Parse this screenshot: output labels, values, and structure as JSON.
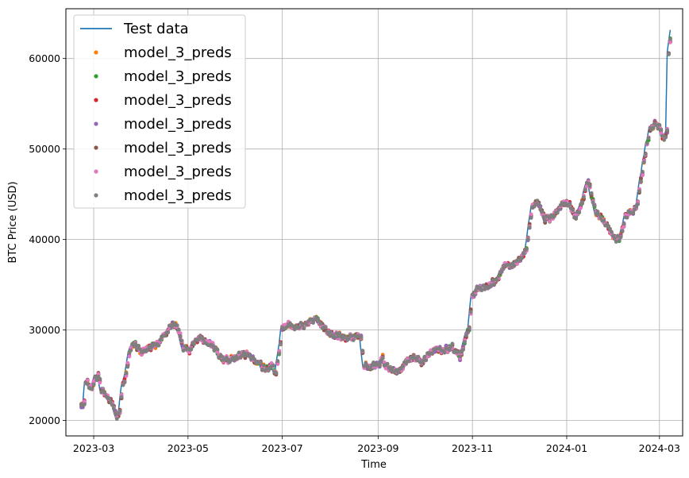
{
  "chart_data": {
    "type": "line",
    "xlabel": "Time",
    "ylabel": "BTC Price (USD)",
    "xlim": [
      "2023-02-11",
      "2024-03-16"
    ],
    "ylim": [
      18300,
      65500
    ],
    "grid": true,
    "legend_position": "top-left",
    "x_ticks": [
      {
        "date": "2023-03-01",
        "label": "2023-03"
      },
      {
        "date": "2023-05-01",
        "label": "2023-05"
      },
      {
        "date": "2023-07-01",
        "label": "2023-07"
      },
      {
        "date": "2023-09-01",
        "label": "2023-09"
      },
      {
        "date": "2023-11-01",
        "label": "2023-11"
      },
      {
        "date": "2024-01-01",
        "label": "2024-01"
      },
      {
        "date": "2024-03-01",
        "label": "2024-03"
      }
    ],
    "y_ticks": [
      {
        "value": 20000,
        "label": "20000"
      },
      {
        "value": 30000,
        "label": "30000"
      },
      {
        "value": 40000,
        "label": "40000"
      },
      {
        "value": 50000,
        "label": "50000"
      },
      {
        "value": 60000,
        "label": "60000"
      }
    ],
    "series": [
      {
        "name": "Test data",
        "style": "line",
        "color": "#1f77b4"
      },
      {
        "name": "model_3_preds",
        "style": "markers",
        "color": "#ff7f0e"
      },
      {
        "name": "model_3_preds",
        "style": "markers",
        "color": "#2ca02c"
      },
      {
        "name": "model_3_preds",
        "style": "markers",
        "color": "#d62728"
      },
      {
        "name": "model_3_preds",
        "style": "markers",
        "color": "#9467bd"
      },
      {
        "name": "model_3_preds",
        "style": "markers",
        "color": "#8c564b"
      },
      {
        "name": "model_3_preds",
        "style": "markers",
        "color": "#e377c2"
      },
      {
        "name": "model_3_preds",
        "style": "markers",
        "color": "#7f7f7f"
      }
    ],
    "test_data": [
      [
        "2023-02-20",
        21800
      ],
      [
        "2023-02-22",
        22000
      ],
      [
        "2023-02-23",
        24200
      ],
      [
        "2023-02-25",
        24000
      ],
      [
        "2023-02-27",
        23500
      ],
      [
        "2023-03-01",
        24700
      ],
      [
        "2023-03-03",
        25000
      ],
      [
        "2023-03-05",
        23500
      ],
      [
        "2023-03-07",
        23000
      ],
      [
        "2023-03-09",
        22500
      ],
      [
        "2023-03-11",
        22000
      ],
      [
        "2023-03-13",
        21500
      ],
      [
        "2023-03-15",
        20400
      ],
      [
        "2023-03-17",
        21000
      ],
      [
        "2023-03-19",
        24200
      ],
      [
        "2023-03-21",
        25000
      ],
      [
        "2023-03-23",
        27500
      ],
      [
        "2023-03-25",
        28400
      ],
      [
        "2023-03-28",
        28200
      ],
      [
        "2023-03-31",
        27500
      ],
      [
        "2023-04-03",
        27800
      ],
      [
        "2023-04-06",
        28100
      ],
      [
        "2023-04-09",
        28200
      ],
      [
        "2023-04-12",
        28800
      ],
      [
        "2023-04-15",
        29500
      ],
      [
        "2023-04-18",
        30200
      ],
      [
        "2023-04-21",
        30600
      ],
      [
        "2023-04-24",
        30000
      ],
      [
        "2023-04-27",
        28000
      ],
      [
        "2023-05-01",
        27800
      ],
      [
        "2023-05-04",
        28500
      ],
      [
        "2023-05-07",
        29200
      ],
      [
        "2023-05-10",
        28800
      ],
      [
        "2023-05-13",
        28500
      ],
      [
        "2023-05-16",
        28200
      ],
      [
        "2023-05-19",
        27500
      ],
      [
        "2023-05-22",
        26800
      ],
      [
        "2023-05-26",
        26700
      ],
      [
        "2023-05-30",
        26900
      ],
      [
        "2023-06-03",
        27200
      ],
      [
        "2023-06-07",
        27300
      ],
      [
        "2023-06-11",
        26800
      ],
      [
        "2023-06-15",
        26200
      ],
      [
        "2023-06-19",
        25800
      ],
      [
        "2023-06-23",
        26000
      ],
      [
        "2023-06-26",
        25200
      ],
      [
        "2023-06-28",
        27300
      ],
      [
        "2023-06-30",
        30100
      ],
      [
        "2023-07-03",
        30600
      ],
      [
        "2023-07-07",
        30300
      ],
      [
        "2023-07-11",
        30400
      ],
      [
        "2023-07-15",
        30600
      ],
      [
        "2023-07-19",
        31100
      ],
      [
        "2023-07-22",
        31300
      ],
      [
        "2023-07-26",
        30400
      ],
      [
        "2023-07-30",
        29800
      ],
      [
        "2023-08-03",
        29400
      ],
      [
        "2023-08-07",
        29300
      ],
      [
        "2023-08-11",
        29200
      ],
      [
        "2023-08-15",
        29300
      ],
      [
        "2023-08-18",
        29400
      ],
      [
        "2023-08-20",
        29100
      ],
      [
        "2023-08-22",
        26200
      ],
      [
        "2023-08-25",
        26000
      ],
      [
        "2023-08-28",
        26100
      ],
      [
        "2023-09-01",
        26200
      ],
      [
        "2023-09-03",
        27000
      ],
      [
        "2023-09-05",
        25900
      ],
      [
        "2023-09-08",
        25800
      ],
      [
        "2023-09-11",
        25300
      ],
      [
        "2023-09-14",
        25600
      ],
      [
        "2023-09-17",
        26200
      ],
      [
        "2023-09-20",
        26800
      ],
      [
        "2023-09-24",
        27000
      ],
      [
        "2023-09-28",
        26400
      ],
      [
        "2023-10-02",
        27100
      ],
      [
        "2023-10-06",
        27700
      ],
      [
        "2023-10-10",
        27800
      ],
      [
        "2023-10-14",
        27900
      ],
      [
        "2023-10-18",
        28100
      ],
      [
        "2023-10-21",
        27500
      ],
      [
        "2023-10-23",
        27000
      ],
      [
        "2023-10-25",
        28000
      ],
      [
        "2023-10-27",
        29500
      ],
      [
        "2023-10-29",
        30200
      ],
      [
        "2023-10-31",
        33700
      ],
      [
        "2023-11-03",
        34500
      ],
      [
        "2023-11-07",
        34700
      ],
      [
        "2023-11-10",
        35000
      ],
      [
        "2023-11-14",
        35300
      ],
      [
        "2023-11-17",
        35700
      ],
      [
        "2023-11-20",
        37000
      ],
      [
        "2023-11-24",
        37200
      ],
      [
        "2023-11-28",
        37400
      ],
      [
        "2023-12-02",
        38000
      ],
      [
        "2023-12-05",
        39000
      ],
      [
        "2023-12-07",
        41500
      ],
      [
        "2023-12-09",
        43800
      ],
      [
        "2023-12-13",
        44000
      ],
      [
        "2023-12-17",
        42200
      ],
      [
        "2023-12-21",
        42400
      ],
      [
        "2023-12-25",
        43200
      ],
      [
        "2023-12-29",
        44000
      ],
      [
        "2024-01-02",
        43800
      ],
      [
        "2024-01-06",
        42500
      ],
      [
        "2024-01-09",
        43500
      ],
      [
        "2024-01-12",
        45500
      ],
      [
        "2024-01-14",
        46500
      ],
      [
        "2024-01-16",
        45000
      ],
      [
        "2024-01-19",
        42800
      ],
      [
        "2024-01-23",
        42300
      ],
      [
        "2024-01-26",
        41500
      ],
      [
        "2024-01-29",
        40600
      ],
      [
        "2024-02-01",
        39900
      ],
      [
        "2024-02-04",
        40400
      ],
      [
        "2024-02-07",
        42500
      ],
      [
        "2024-02-10",
        43100
      ],
      [
        "2024-02-13",
        43300
      ],
      [
        "2024-02-15",
        44000
      ],
      [
        "2024-02-17",
        46500
      ],
      [
        "2024-02-19",
        48500
      ],
      [
        "2024-02-21",
        50500
      ],
      [
        "2024-02-23",
        52000
      ],
      [
        "2024-02-26",
        52800
      ],
      [
        "2024-02-29",
        52500
      ],
      [
        "2024-03-02",
        51500
      ],
      [
        "2024-03-04",
        51200
      ],
      [
        "2024-03-05",
        52200
      ],
      [
        "2024-03-06",
        60500
      ],
      [
        "2024-03-07",
        62000
      ],
      [
        "2024-03-08",
        63000
      ]
    ]
  }
}
